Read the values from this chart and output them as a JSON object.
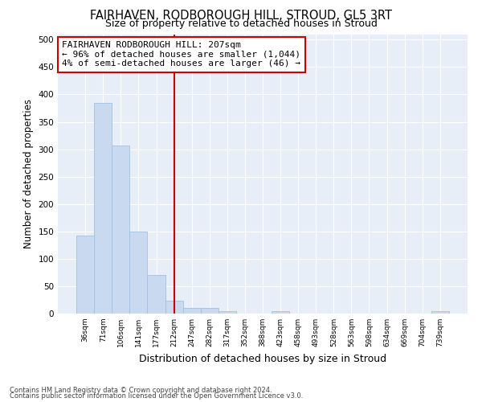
{
  "title": "FAIRHAVEN, RODBOROUGH HILL, STROUD, GL5 3RT",
  "subtitle": "Size of property relative to detached houses in Stroud",
  "xlabel": "Distribution of detached houses by size in Stroud",
  "ylabel": "Number of detached properties",
  "categories": [
    "36sqm",
    "71sqm",
    "106sqm",
    "141sqm",
    "177sqm",
    "212sqm",
    "247sqm",
    "282sqm",
    "317sqm",
    "352sqm",
    "388sqm",
    "423sqm",
    "458sqm",
    "493sqm",
    "528sqm",
    "563sqm",
    "598sqm",
    "634sqm",
    "669sqm",
    "704sqm",
    "739sqm"
  ],
  "values": [
    143,
    385,
    307,
    149,
    71,
    23,
    10,
    10,
    5,
    0,
    0,
    5,
    0,
    0,
    0,
    0,
    0,
    0,
    0,
    0,
    5
  ],
  "bar_color": "#c9daf0",
  "bar_edge_color": "#9dc3e6",
  "vline_x_idx": 5,
  "vline_color": "#cc0000",
  "annotation_title": "FAIRHAVEN RODBOROUGH HILL: 207sqm",
  "annotation_line1": "← 96% of detached houses are smaller (1,044)",
  "annotation_line2": "4% of semi-detached houses are larger (46) →",
  "annotation_box_edge_color": "#cc0000",
  "ylim": [
    0,
    510
  ],
  "yticks": [
    0,
    50,
    100,
    150,
    200,
    250,
    300,
    350,
    400,
    450,
    500
  ],
  "footnote1": "Contains HM Land Registry data © Crown copyright and database right 2024.",
  "footnote2": "Contains public sector information licensed under the Open Government Licence v3.0.",
  "bg_color": "#ffffff",
  "plot_bg_color": "#e8eef8",
  "grid_color": "#ffffff",
  "title_fontsize": 10.5,
  "subtitle_fontsize": 9,
  "ylabel_fontsize": 8.5,
  "xlabel_fontsize": 9
}
